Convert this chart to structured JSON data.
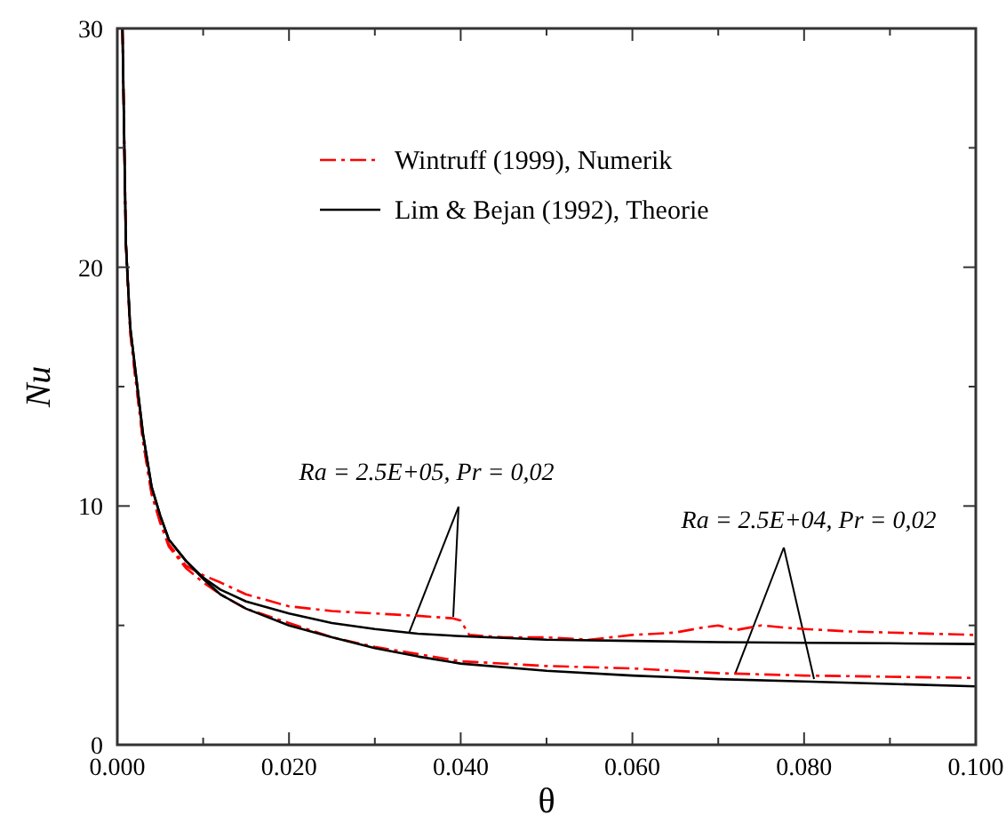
{
  "chart_data": {
    "type": "line",
    "xlabel": "θ",
    "ylabel": "Nu",
    "xlim": [
      0,
      0.1
    ],
    "ylim": [
      0,
      30
    ],
    "xticks": [
      {
        "value": 0,
        "label": "0.000"
      },
      {
        "value": 0.01,
        "label": null
      },
      {
        "value": 0.02,
        "label": "0.020"
      },
      {
        "value": 0.03,
        "label": null
      },
      {
        "value": 0.04,
        "label": "0.040"
      },
      {
        "value": 0.05,
        "label": null
      },
      {
        "value": 0.06,
        "label": "0.060"
      },
      {
        "value": 0.07,
        "label": null
      },
      {
        "value": 0.08,
        "label": "0.080"
      },
      {
        "value": 0.09,
        "label": null
      },
      {
        "value": 0.1,
        "label": "0.100"
      }
    ],
    "yticks": [
      0,
      {
        "value": 5,
        "label": null
      },
      10,
      {
        "value": 15,
        "label": null
      },
      20,
      {
        "value": 25,
        "label": null
      },
      30
    ],
    "legend": "top",
    "grid": false,
    "marker": "none",
    "annotations": [
      {
        "text": "Ra = 2.5E+05, Pr = 0,02",
        "x": 0.034,
        "y": 4.7
      },
      {
        "text": "Ra = 2.5E+04, Pr = 0,02",
        "x": 0.072,
        "y": 3.0
      }
    ],
    "series": [
      {
        "name": "Wintruff (1999), Numerik",
        "color": "#ff0000",
        "line_style": "dashed",
        "x": [
          0.0006,
          0.001,
          0.0015,
          0.002,
          0.003,
          0.004,
          0.005,
          0.006,
          0.008,
          0.01,
          0.012,
          0.015,
          0.02,
          0.025,
          0.03,
          0.035,
          0.039,
          0.04,
          0.041,
          0.045,
          0.05,
          0.055,
          0.06,
          0.065,
          0.068,
          0.07,
          0.072,
          0.075,
          0.078,
          0.08,
          0.085,
          0.09,
          0.1
        ],
        "values": [
          30,
          21,
          17.3,
          15.7,
          12.7,
          10.5,
          9.3,
          8.4,
          7.5,
          7.1,
          6.8,
          6.3,
          5.8,
          5.6,
          5.5,
          5.4,
          5.3,
          5.2,
          4.6,
          4.5,
          4.5,
          4.4,
          4.6,
          4.7,
          4.9,
          5.0,
          4.8,
          5.0,
          4.9,
          4.85,
          4.75,
          4.7,
          4.6
        ]
      },
      {
        "color": "#ff0000",
        "line_style": "dashed",
        "x": [
          0.0006,
          0.001,
          0.0015,
          0.002,
          0.003,
          0.004,
          0.005,
          0.006,
          0.008,
          0.01,
          0.012,
          0.015,
          0.02,
          0.025,
          0.03,
          0.035,
          0.04,
          0.05,
          0.06,
          0.07,
          0.08,
          0.09,
          0.1
        ],
        "values": [
          30,
          21,
          17.3,
          15.7,
          12.7,
          10.5,
          9.3,
          8.3,
          7.4,
          6.8,
          6.3,
          5.7,
          5.1,
          4.5,
          4.1,
          3.8,
          3.5,
          3.3,
          3.2,
          3.0,
          2.9,
          2.85,
          2.8
        ]
      },
      {
        "name": "Lim & Bejan (1992), Theorie",
        "color": "#000000",
        "line_style": "solid",
        "x": [
          0.0006,
          0.001,
          0.0015,
          0.002,
          0.003,
          0.004,
          0.005,
          0.006,
          0.008,
          0.01,
          0.012,
          0.015,
          0.02,
          0.025,
          0.03,
          0.035,
          0.04,
          0.05,
          0.06,
          0.07,
          0.08,
          0.09,
          0.1
        ],
        "values": [
          30,
          21,
          17.5,
          16,
          13,
          10.8,
          9.6,
          8.6,
          7.7,
          7.0,
          6.5,
          6.0,
          5.5,
          5.1,
          4.85,
          4.65,
          4.55,
          4.4,
          4.35,
          4.3,
          4.27,
          4.25,
          4.22
        ]
      },
      {
        "color": "#000000",
        "line_style": "solid",
        "x": [
          0.0006,
          0.001,
          0.0015,
          0.002,
          0.003,
          0.004,
          0.005,
          0.006,
          0.008,
          0.01,
          0.012,
          0.015,
          0.02,
          0.025,
          0.03,
          0.035,
          0.04,
          0.05,
          0.06,
          0.07,
          0.08,
          0.09,
          0.1
        ],
        "values": [
          30,
          21,
          17.5,
          16,
          13,
          10.8,
          9.6,
          8.6,
          7.7,
          6.95,
          6.3,
          5.7,
          5.0,
          4.5,
          4.05,
          3.7,
          3.4,
          3.1,
          2.9,
          2.75,
          2.65,
          2.55,
          2.45
        ]
      }
    ]
  }
}
